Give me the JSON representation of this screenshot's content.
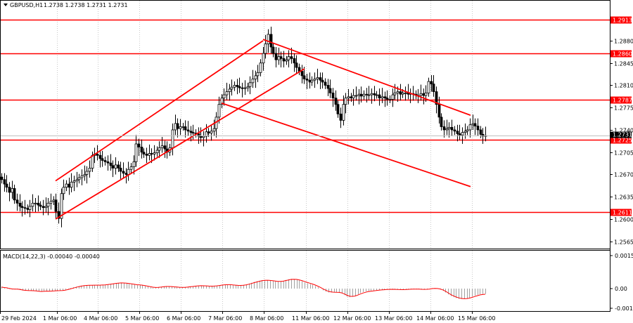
{
  "header": {
    "symbol_label": "GBPUSD,H1",
    "ohlc": "1.2738 1.2738 1.2731 1.2731"
  },
  "macd": {
    "label": "MACD(14,22,3) -0.00040 -0.00040",
    "axis_ticks": [
      "0.00153",
      "0.00",
      "-0.00102"
    ],
    "histogram": [
      7e-05,
      3e-05,
      2e-05,
      -2e-05,
      -4e-05,
      -3e-05,
      -2e-05,
      -6e-05,
      -9e-05,
      -0.0001,
      -0.0001,
      -0.0001,
      -0.0001,
      -0.00012,
      -0.00014,
      -0.00014,
      -0.00012,
      -0.00011,
      -0.00012,
      -0.00011,
      -0.0001,
      -9e-05,
      -9e-05,
      -8e-05,
      -6e-05,
      -2e-05,
      2e-05,
      6e-05,
      9e-05,
      0.00012,
      0.00014,
      0.00015,
      0.00016,
      0.00016,
      0.00016,
      0.00016,
      0.00016,
      0.00016,
      0.00017,
      0.00018,
      0.0002,
      0.00022,
      0.00024,
      0.00026,
      0.00027,
      0.00027,
      0.00026,
      0.00024,
      0.00022,
      0.0002,
      0.00018,
      0.00016,
      0.00016,
      0.00015,
      0.00012,
      9e-05,
      6e-05,
      4e-05,
      4e-05,
      6e-05,
      8e-05,
      0.0001,
      0.00011,
      0.0001,
      9e-05,
      7e-05,
      6e-05,
      5e-05,
      5e-05,
      6e-05,
      8e-05,
      0.0001,
      0.00011,
      0.00013,
      0.00014,
      0.00014,
      0.00013,
      0.00012,
      0.00011,
      0.00011,
      0.00012,
      0.00014,
      0.00016,
      0.00018,
      0.00019,
      0.00019,
      0.00018,
      0.00016,
      0.00015,
      0.00014,
      0.00014,
      0.00016,
      0.00019,
      0.00023,
      0.00027,
      0.00031,
      0.00034,
      0.00037,
      0.00039,
      0.0004,
      0.00039,
      0.00037,
      0.00035,
      0.00033,
      0.00032,
      0.00033,
      0.00036,
      0.0004,
      0.00043,
      0.00045,
      0.00044,
      0.00042,
      0.00038,
      0.00034,
      0.00029,
      0.00025,
      0.00021,
      0.00017,
      0.00012,
      6e-05,
      0.0,
      -8e-05,
      -0.00014,
      -0.00018,
      -0.00018,
      -0.00018,
      -0.00018,
      -0.00018,
      -0.00022,
      -0.0003,
      -0.00037,
      -0.0004,
      -0.00037,
      -0.00033,
      -0.00026,
      -0.0002,
      -0.00016,
      -0.00013,
      -0.00011,
      -0.0001,
      -9e-05,
      -8e-05,
      -6e-05,
      -5e-05,
      -4e-05,
      -3e-05,
      -3e-05,
      -3e-05,
      -4e-05,
      -5e-05,
      -5e-05,
      -5e-05,
      -4e-05,
      -3e-05,
      -2e-05,
      -2e-05,
      -2e-05,
      -3e-05,
      -4e-05,
      -4e-05,
      -3e-05,
      -1e-05,
      2e-05,
      2e-05,
      0.0,
      -4e-05,
      -0.0001,
      -0.00018,
      -0.00027,
      -0.00035,
      -0.0004,
      -0.00044,
      -0.00047,
      -0.00048,
      -0.00048,
      -0.00046,
      -0.00042,
      -0.00037,
      -0.00033,
      -0.00029,
      -0.00026,
      -0.00025,
      -0.00025
    ]
  },
  "price_axis": {
    "ticks": [
      "1.2913",
      "1.2880",
      "1.2860",
      "1.2845",
      "1.2810",
      "1.2787",
      "1.2775",
      "1.2740",
      "1.2731",
      "1.2725",
      "1.2705",
      "1.2670",
      "1.2635",
      "1.2611",
      "1.2600",
      "1.2565"
    ],
    "level_labels": [
      "1.2913",
      "1.2860",
      "1.2787",
      "1.2725",
      "1.2611"
    ],
    "current_label": "1.2731"
  },
  "time_axis": {
    "labels": [
      "29 Feb 2024",
      "1 Mar 06:00",
      "4 Mar 06:00",
      "5 Mar 06:00",
      "6 Mar 06:00",
      "7 Mar 06:00",
      "8 Mar 06:00",
      "11 Mar 06:00",
      "12 Mar 06:00",
      "13 Mar 06:00",
      "14 Mar 06:00",
      "15 Mar 06:00"
    ]
  },
  "chart_data": {
    "type": "candlestick",
    "symbol": "GBPUSD",
    "timeframe": "H1",
    "x_range": [
      "29 Feb 2024",
      "15 Mar 2024"
    ],
    "y_range": [
      1.2545,
      1.2945
    ],
    "horizontal_levels": [
      1.2913,
      1.286,
      1.2787,
      1.2725,
      1.2611
    ],
    "trend_channels": [
      {
        "name": "ascending-channel",
        "lines": [
          {
            "from": [
              "1 Mar",
              1.266
            ],
            "to": [
              "8 Mar",
              1.288
            ]
          },
          {
            "from": [
              "1 Mar",
              1.26
            ],
            "to": [
              "11 Mar",
              1.2836
            ]
          }
        ]
      },
      {
        "name": "descending-channel",
        "lines": [
          {
            "from": [
              "8 Mar",
              1.2882
            ],
            "to": [
              "15 Mar",
              1.2763
            ]
          },
          {
            "from": [
              "7 Mar",
              1.2782
            ],
            "to": [
              "15 Mar",
              1.2651
            ]
          }
        ]
      }
    ],
    "closes": [
      1.2662,
      1.2655,
      1.265,
      1.2642,
      1.2648,
      1.263,
      1.2625,
      1.262,
      1.2618,
      1.2617,
      1.2615,
      1.262,
      1.2625,
      1.2625,
      1.2622,
      1.262,
      1.2618,
      1.262,
      1.2625,
      1.2628,
      1.263,
      1.2612,
      1.2601,
      1.264,
      1.265,
      1.2655,
      1.265,
      1.2658,
      1.266,
      1.2662,
      1.2665,
      1.2668,
      1.267,
      1.2675,
      1.268,
      1.27,
      1.2702,
      1.27,
      1.2695,
      1.2692,
      1.269,
      1.2688,
      1.2684,
      1.268,
      1.2685,
      1.268,
      1.2675,
      1.2672,
      1.267,
      1.2678,
      1.2682,
      1.269,
      1.2718,
      1.2713,
      1.2705,
      1.2702,
      1.27,
      1.2703,
      1.2702,
      1.2704,
      1.2708,
      1.2712,
      1.2715,
      1.271,
      1.2705,
      1.2712,
      1.274,
      1.275,
      1.2742,
      1.2745,
      1.2745,
      1.274,
      1.2738,
      1.2736,
      1.2735,
      1.2734,
      1.273,
      1.2728,
      1.273,
      1.2737,
      1.2735,
      1.2738,
      1.2742,
      1.276,
      1.278,
      1.279,
      1.2795,
      1.28,
      1.2804,
      1.2807,
      1.281,
      1.2808,
      1.2806,
      1.2805,
      1.2806,
      1.2808,
      1.2814,
      1.282,
      1.2825,
      1.283,
      1.2845,
      1.286,
      1.2875,
      1.289,
      1.287,
      1.286,
      1.285,
      1.2855,
      1.2852,
      1.2848,
      1.285,
      1.2855,
      1.2852,
      1.2845,
      1.2838,
      1.2832,
      1.2825,
      1.282,
      1.2818,
      1.2815,
      1.2818,
      1.282,
      1.2822,
      1.2818,
      1.2815,
      1.281,
      1.2805,
      1.2798,
      1.279,
      1.278,
      1.2765,
      1.2755,
      1.278,
      1.279,
      1.2792,
      1.279,
      1.2794,
      1.2794,
      1.2796,
      1.2793,
      1.2796,
      1.2795,
      1.2795,
      1.2797,
      1.2795,
      1.2795,
      1.279,
      1.2792,
      1.279,
      1.2788,
      1.2788,
      1.2795,
      1.2798,
      1.28,
      1.2796,
      1.2798,
      1.2798,
      1.2796,
      1.2797,
      1.2796,
      1.2794,
      1.2794,
      1.2797,
      1.2794,
      1.2798,
      1.2816,
      1.2812,
      1.28,
      1.278,
      1.276,
      1.2745,
      1.274,
      1.2742,
      1.2744,
      1.274,
      1.2738,
      1.2734,
      1.2732,
      1.2736,
      1.2738,
      1.274,
      1.2748,
      1.275,
      1.2746,
      1.274,
      1.2733,
      1.273,
      1.2731
    ]
  }
}
